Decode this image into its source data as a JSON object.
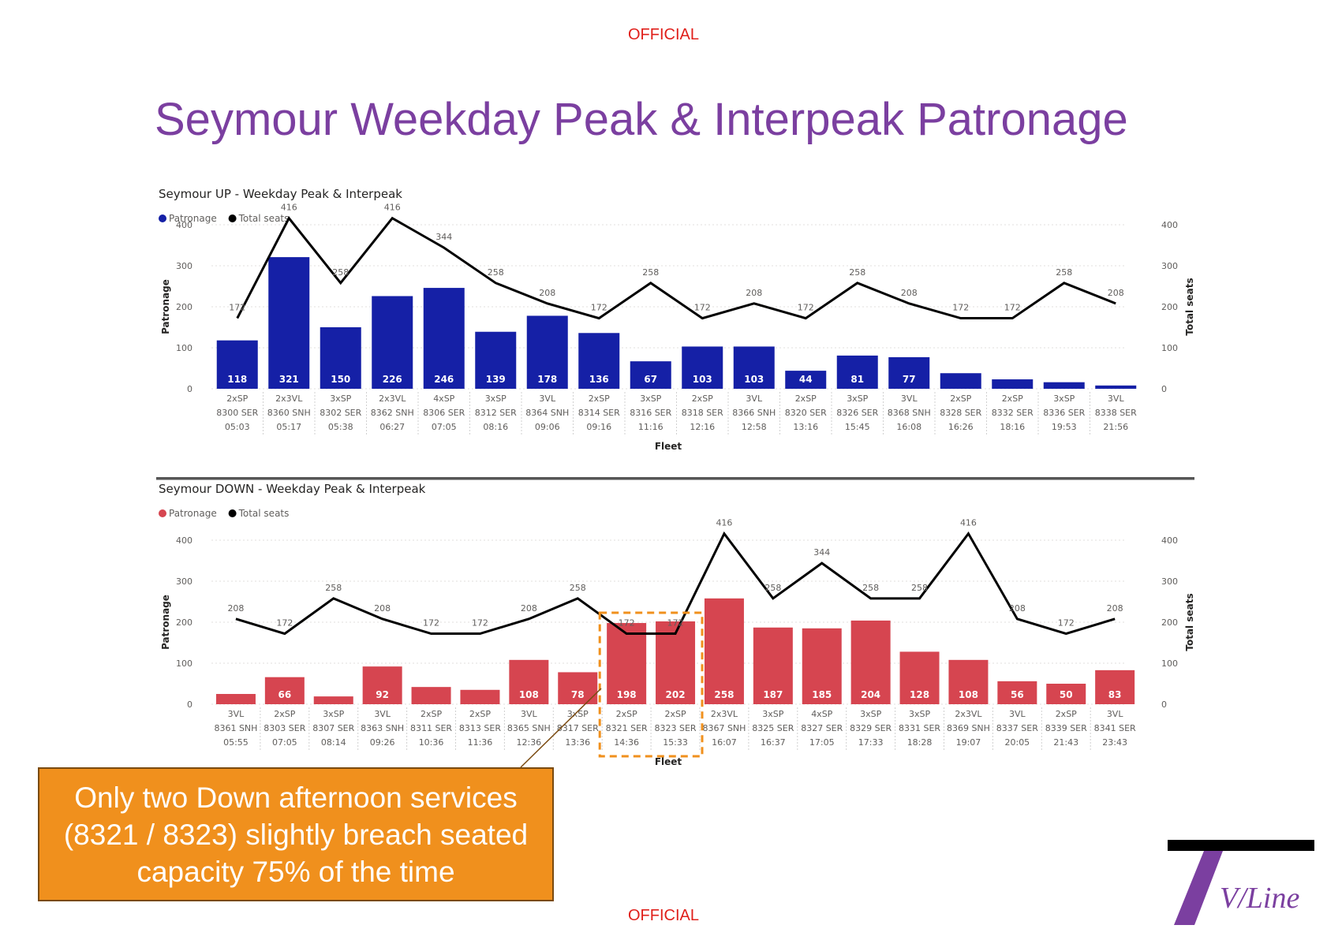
{
  "header": {
    "classification_top": "OFFICIAL",
    "classification_bottom": "OFFICIAL"
  },
  "page_title": "Seymour Weekday Peak & Interpeak Patronage",
  "callout": {
    "text": "Only two Down afternoon services (8321 / 8323) slightly breach seated capacity 75% of the time"
  },
  "logo": {
    "text": "V/Line",
    "brand_color": "#7b3fa0"
  },
  "colors": {
    "up_bar": "#1520a6",
    "down_bar": "#d64550",
    "seats_line": "#000000",
    "highlight": "#f0901d"
  },
  "chart_data": [
    {
      "type": "bar",
      "title": "Seymour UP - Weekday Peak & Interpeak",
      "legend": [
        "Patronage",
        "Total seats"
      ],
      "ylabel": "Patronage",
      "y2label": "Total seats",
      "xlabel": "Fleet",
      "ylim": [
        0,
        400
      ],
      "yticks": [
        "0",
        "100",
        "200",
        "300",
        "400"
      ],
      "categories": [
        [
          "2xSP",
          "8300 SER",
          "05:03"
        ],
        [
          "2x3VL",
          "8360 SNH",
          "05:17"
        ],
        [
          "3xSP",
          "8302 SER",
          "05:38"
        ],
        [
          "2x3VL",
          "8362 SNH",
          "06:27"
        ],
        [
          "4xSP",
          "8306 SER",
          "07:05"
        ],
        [
          "3xSP",
          "8312 SER",
          "08:16"
        ],
        [
          "3VL",
          "8364 SNH",
          "09:06"
        ],
        [
          "2xSP",
          "8314 SER",
          "09:16"
        ],
        [
          "3xSP",
          "8316 SER",
          "11:16"
        ],
        [
          "2xSP",
          "8318 SER",
          "12:16"
        ],
        [
          "3VL",
          "8366 SNH",
          "12:58"
        ],
        [
          "2xSP",
          "8320 SER",
          "13:16"
        ],
        [
          "3xSP",
          "8326 SER",
          "15:45"
        ],
        [
          "3VL",
          "8368 SNH",
          "16:08"
        ],
        [
          "2xSP",
          "8328 SER",
          "16:26"
        ],
        [
          "2xSP",
          "8332 SER",
          "18:16"
        ],
        [
          "3xSP",
          "8336 SER",
          "19:53"
        ],
        [
          "3VL",
          "8338 SER",
          "21:56"
        ]
      ],
      "series": [
        {
          "name": "Patronage",
          "values": [
            118,
            321,
            150,
            226,
            246,
            139,
            178,
            136,
            67,
            103,
            103,
            44,
            81,
            77,
            38,
            23,
            16,
            8
          ]
        },
        {
          "name": "Total seats",
          "values": [
            172,
            416,
            258,
            416,
            344,
            258,
            208,
            172,
            258,
            172,
            208,
            172,
            258,
            208,
            172,
            172,
            258,
            208
          ]
        }
      ],
      "bar_labels": [
        "118",
        "321",
        "150",
        "226",
        "246",
        "139",
        "178",
        "136",
        "67",
        "103",
        "103",
        "44",
        "81",
        "77",
        "",
        "",
        "",
        ""
      ],
      "highlight": []
    },
    {
      "type": "bar",
      "title": "Seymour DOWN - Weekday Peak & Interpeak",
      "legend": [
        "Patronage",
        "Total seats"
      ],
      "ylabel": "Patronage",
      "y2label": "Total seats",
      "xlabel": "Fleet",
      "ylim": [
        0,
        400
      ],
      "yticks": [
        "0",
        "100",
        "200",
        "300",
        "400"
      ],
      "categories": [
        [
          "3VL",
          "8361 SNH",
          "05:55"
        ],
        [
          "2xSP",
          "8303 SER",
          "07:05"
        ],
        [
          "3xSP",
          "8307 SER",
          "08:14"
        ],
        [
          "3VL",
          "8363 SNH",
          "09:26"
        ],
        [
          "2xSP",
          "8311 SER",
          "10:36"
        ],
        [
          "2xSP",
          "8313 SER",
          "11:36"
        ],
        [
          "3VL",
          "8365 SNH",
          "12:36"
        ],
        [
          "3xSP",
          "8317 SER",
          "13:36"
        ],
        [
          "2xSP",
          "8321 SER",
          "14:36"
        ],
        [
          "2xSP",
          "8323 SER",
          "15:33"
        ],
        [
          "2x3VL",
          "8367 SNH",
          "16:07"
        ],
        [
          "3xSP",
          "8325 SER",
          "16:37"
        ],
        [
          "4xSP",
          "8327 SER",
          "17:05"
        ],
        [
          "3xSP",
          "8329 SER",
          "17:33"
        ],
        [
          "3xSP",
          "8331 SER",
          "18:28"
        ],
        [
          "2x3VL",
          "8369 SNH",
          "19:07"
        ],
        [
          "3VL",
          "8337 SER",
          "20:05"
        ],
        [
          "2xSP",
          "8339 SER",
          "21:43"
        ],
        [
          "3VL",
          "8341 SER",
          "23:43"
        ]
      ],
      "series": [
        {
          "name": "Patronage",
          "values": [
            25,
            66,
            19,
            92,
            42,
            35,
            108,
            78,
            198,
            202,
            258,
            187,
            185,
            204,
            128,
            108,
            56,
            50,
            83
          ]
        },
        {
          "name": "Total seats",
          "values": [
            208,
            172,
            258,
            208,
            172,
            172,
            208,
            258,
            172,
            172,
            416,
            258,
            344,
            258,
            258,
            416,
            208,
            172,
            208
          ]
        }
      ],
      "bar_labels": [
        "",
        "66",
        "",
        "92",
        "",
        "",
        "108",
        "78",
        "198",
        "202",
        "258",
        "187",
        "185",
        "204",
        "128",
        "108",
        "56",
        "50",
        "83"
      ],
      "highlight": [
        8,
        9
      ]
    }
  ]
}
